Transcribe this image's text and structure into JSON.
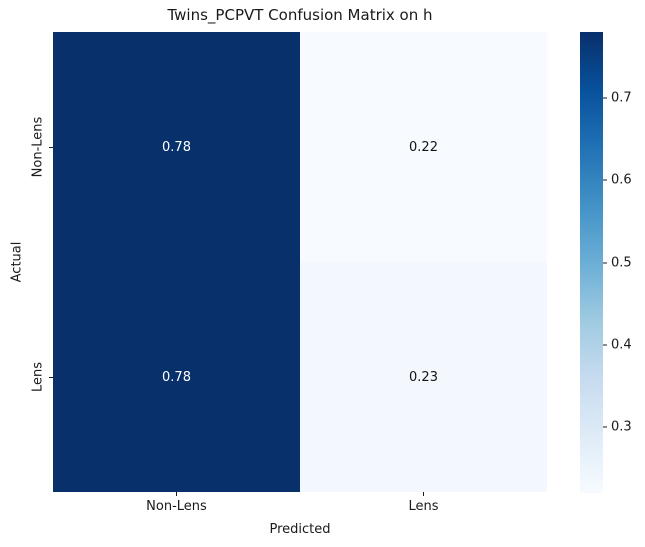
{
  "title": "Twins_PCPVT Confusion Matrix on h",
  "chart_data": {
    "type": "heatmap",
    "title": "Twins_PCPVT Confusion Matrix on h",
    "xlabel": "Predicted",
    "ylabel": "Actual",
    "x_categories": [
      "Non-Lens",
      "Lens"
    ],
    "y_categories": [
      "Non-Lens",
      "Lens"
    ],
    "values": [
      [
        0.78,
        0.22
      ],
      [
        0.78,
        0.23
      ]
    ],
    "cell_colors": [
      [
        "#08306b",
        "#f7fbff"
      ],
      [
        "#08306b",
        "#f2f8fd"
      ]
    ],
    "cell_text_colors": [
      [
        "#ffffff",
        "#141414"
      ],
      [
        "#ffffff",
        "#141414"
      ]
    ],
    "grid": false,
    "legend": false,
    "colorbar": {
      "position": "right",
      "vmin": 0.22,
      "vmax": 0.78,
      "tick_values": [
        0.7,
        0.6,
        0.5,
        0.4,
        0.3
      ],
      "colormap": "Blues",
      "gradient_stops_top_to_bottom": [
        "#08306b",
        "#08519c",
        "#2171b5",
        "#4292c6",
        "#6baed6",
        "#9ecae1",
        "#c6dbef",
        "#deebf7",
        "#f7fbff"
      ]
    }
  }
}
